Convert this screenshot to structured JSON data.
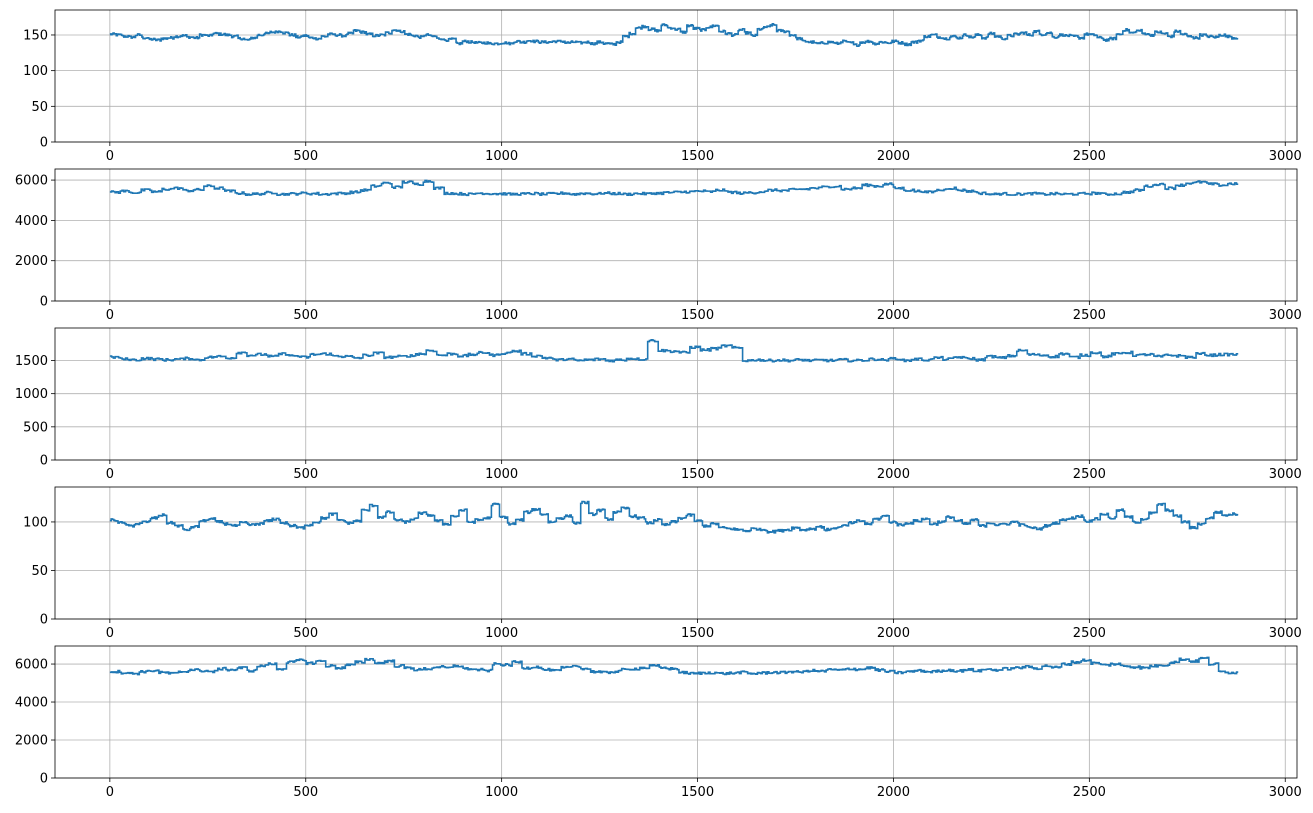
{
  "figure": {
    "background": "#ffffff",
    "line_color": "#1f77b4",
    "grid_color": "#b0b0b0"
  },
  "chart_data": [
    {
      "type": "line",
      "grid": true,
      "xlim": [
        -140,
        3030
      ],
      "ylim": [
        0,
        185
      ],
      "xticks": [
        0,
        500,
        1000,
        1500,
        2000,
        2500,
        3000
      ],
      "yticks": [
        0,
        50,
        100,
        150
      ],
      "series": [
        {
          "x_start": 0,
          "x_end": 2880,
          "values": [
            151,
            150,
            148,
            147,
            150,
            146,
            144,
            143,
            145,
            146,
            148,
            149,
            147,
            146,
            150,
            149,
            152,
            151,
            150,
            148,
            145,
            143,
            146,
            150,
            152,
            154,
            155,
            153,
            150,
            147,
            149,
            146,
            145,
            148,
            151,
            150,
            149,
            152,
            156,
            154,
            151,
            149,
            150,
            153,
            157,
            155,
            151,
            149,
            147,
            150,
            148,
            145,
            143,
            144,
            138,
            141,
            140,
            139,
            139,
            138,
            138,
            139,
            138,
            141,
            140,
            142,
            141,
            140,
            140,
            141,
            141,
            139,
            140,
            139,
            140,
            138,
            140,
            138,
            137,
            140,
            148,
            152,
            160,
            162,
            158,
            156,
            164,
            160,
            158,
            154,
            163,
            159,
            157,
            161,
            163,
            155,
            152,
            150,
            157,
            153,
            149,
            158,
            161,
            164,
            156,
            155,
            150,
            145,
            141,
            140,
            138,
            139,
            140,
            138,
            141,
            139,
            136,
            140,
            141,
            138,
            140,
            139,
            141,
            139,
            137,
            140,
            142,
            148,
            150,
            147,
            145,
            148,
            146,
            150,
            147,
            150,
            146,
            152,
            148,
            145,
            149,
            151,
            153,
            150,
            155,
            151,
            153,
            147,
            150,
            149,
            148,
            146,
            151,
            150,
            146,
            143,
            145,
            151,
            157,
            153,
            156,
            152,
            150,
            154,
            152,
            148,
            155,
            151,
            148,
            146,
            150,
            148,
            147,
            150,
            148,
            146
          ]
        }
      ]
    },
    {
      "type": "line",
      "grid": true,
      "xlim": [
        -140,
        3030
      ],
      "ylim": [
        0,
        6550
      ],
      "xticks": [
        0,
        500,
        1000,
        1500,
        2000,
        2500,
        3000
      ],
      "yticks": [
        0,
        2000,
        4000,
        6000
      ],
      "series": [
        {
          "x_start": 0,
          "x_end": 2880,
          "values": [
            5400,
            5450,
            5380,
            5500,
            5420,
            5550,
            5600,
            5480,
            5520,
            5700,
            5600,
            5450,
            5350,
            5300,
            5320,
            5380,
            5300,
            5320,
            5350,
            5330,
            5300,
            5330,
            5350,
            5400,
            5500,
            5700,
            5850,
            5650,
            5900,
            5800,
            5950,
            5600,
            5350,
            5320,
            5300,
            5350,
            5330,
            5320,
            5300,
            5310,
            5330,
            5300,
            5320,
            5350,
            5300,
            5340,
            5320,
            5350,
            5330,
            5300,
            5330,
            5320,
            5350,
            5380,
            5400,
            5420,
            5450,
            5420,
            5500,
            5400,
            5350,
            5380,
            5420,
            5500,
            5480,
            5520,
            5550,
            5600,
            5650,
            5700,
            5550,
            5600,
            5750,
            5700,
            5800,
            5600,
            5500,
            5450,
            5400,
            5500,
            5600,
            5500,
            5450,
            5350,
            5300,
            5320,
            5300,
            5310,
            5330,
            5300,
            5320,
            5300,
            5310,
            5330,
            5350,
            5300,
            5320,
            5400,
            5500,
            5700,
            5800,
            5600,
            5750,
            5850,
            5900,
            5800,
            5750,
            5820
          ]
        }
      ]
    },
    {
      "type": "line",
      "grid": true,
      "xlim": [
        -140,
        3030
      ],
      "ylim": [
        0,
        1990
      ],
      "xticks": [
        0,
        500,
        1000,
        1500,
        2000,
        2500,
        3000
      ],
      "yticks": [
        0,
        500,
        1000,
        1500
      ],
      "series": [
        {
          "x_start": 0,
          "x_end": 2880,
          "values": [
            1550,
            1520,
            1510,
            1530,
            1520,
            1510,
            1520,
            1530,
            1510,
            1550,
            1560,
            1540,
            1620,
            1580,
            1590,
            1560,
            1600,
            1570,
            1550,
            1590,
            1600,
            1570,
            1560,
            1540,
            1580,
            1610,
            1550,
            1560,
            1570,
            1600,
            1650,
            1580,
            1600,
            1570,
            1590,
            1620,
            1580,
            1610,
            1640,
            1600,
            1570,
            1540,
            1510,
            1520,
            1500,
            1510,
            1520,
            1500,
            1510,
            1530,
            1520,
            1800,
            1650,
            1640,
            1620,
            1700,
            1660,
            1680,
            1720,
            1690,
            1500,
            1510,
            1500,
            1505,
            1500,
            1510,
            1500,
            1505,
            1500,
            1510,
            1500,
            1505,
            1520,
            1510,
            1530,
            1500,
            1520,
            1510,
            1540,
            1520,
            1550,
            1530,
            1510,
            1560,
            1540,
            1570,
            1650,
            1590,
            1580,
            1560,
            1600,
            1550,
            1580,
            1620,
            1560,
            1600,
            1620,
            1580,
            1590,
            1560,
            1580,
            1570,
            1550,
            1600,
            1580,
            1590,
            1590
          ]
        }
      ]
    },
    {
      "type": "line",
      "grid": true,
      "xlim": [
        -140,
        3030
      ],
      "ylim": [
        0,
        136
      ],
      "xticks": [
        0,
        500,
        1000,
        1500,
        2000,
        2500,
        3000
      ],
      "yticks": [
        0,
        50,
        100
      ],
      "series": [
        {
          "x_start": 0,
          "x_end": 2880,
          "values": [
            102,
            99,
            96,
            98,
            100,
            104,
            107,
            99,
            96,
            92,
            95,
            101,
            103,
            100,
            98,
            96,
            99,
            97,
            98,
            101,
            103,
            99,
            96,
            94,
            97,
            100,
            104,
            108,
            102,
            99,
            101,
            112,
            117,
            105,
            110,
            102,
            100,
            103,
            109,
            107,
            101,
            98,
            106,
            112,
            100,
            102,
            104,
            118,
            105,
            98,
            102,
            110,
            113,
            108,
            100,
            104,
            106,
            99,
            120,
            108,
            112,
            103,
            110,
            114,
            106,
            104,
            99,
            102,
            97,
            100,
            104,
            107,
            101,
            96,
            98,
            94,
            93,
            92,
            91,
            93,
            92,
            90,
            91,
            92,
            94,
            92,
            93,
            95,
            92,
            94,
            96,
            99,
            101,
            98,
            103,
            106,
            100,
            97,
            99,
            101,
            103,
            98,
            100,
            105,
            101,
            98,
            102,
            96,
            99,
            97,
            98,
            100,
            97,
            94,
            93,
            96,
            99,
            102,
            104,
            106,
            101,
            103,
            108,
            104,
            112,
            105,
            100,
            103,
            109,
            118,
            112,
            106,
            100,
            94,
            98,
            104,
            110,
            107,
            108
          ]
        }
      ]
    },
    {
      "type": "line",
      "grid": true,
      "xlim": [
        -140,
        3030
      ],
      "ylim": [
        0,
        6950
      ],
      "xticks": [
        0,
        500,
        1000,
        1500,
        2000,
        2500,
        3000
      ],
      "yticks": [
        0,
        2000,
        4000,
        6000
      ],
      "series": [
        {
          "x_start": 0,
          "x_end": 2880,
          "values": [
            5600,
            5550,
            5500,
            5600,
            5650,
            5550,
            5500,
            5600,
            5700,
            5650,
            5600,
            5750,
            5700,
            5800,
            5650,
            5900,
            6000,
            5750,
            6100,
            6200,
            6050,
            6150,
            5900,
            5800,
            5950,
            6100,
            6250,
            6050,
            6150,
            5900,
            5800,
            5700,
            5750,
            5850,
            5800,
            5900,
            5750,
            5700,
            5650,
            6000,
            5950,
            6100,
            5800,
            5850,
            5700,
            5650,
            5800,
            5900,
            5750,
            5600,
            5550,
            5600,
            5700,
            5750,
            5800,
            5900,
            5800,
            5750,
            5550,
            5500,
            5520,
            5550,
            5500,
            5520,
            5560,
            5500,
            5530,
            5560,
            5550,
            5600,
            5580,
            5650,
            5620,
            5700,
            5680,
            5750,
            5720,
            5800,
            5680,
            5600,
            5550,
            5600,
            5650,
            5600,
            5620,
            5680,
            5640,
            5700,
            5650,
            5720,
            5690,
            5750,
            5800,
            5850,
            5780,
            5900,
            5820,
            6000,
            6100,
            6200,
            6050,
            5950,
            6000,
            5900,
            5850,
            5800,
            5900,
            5950,
            6100,
            6250,
            6150,
            6300,
            6000,
            5600,
            5550
          ]
        }
      ]
    }
  ]
}
